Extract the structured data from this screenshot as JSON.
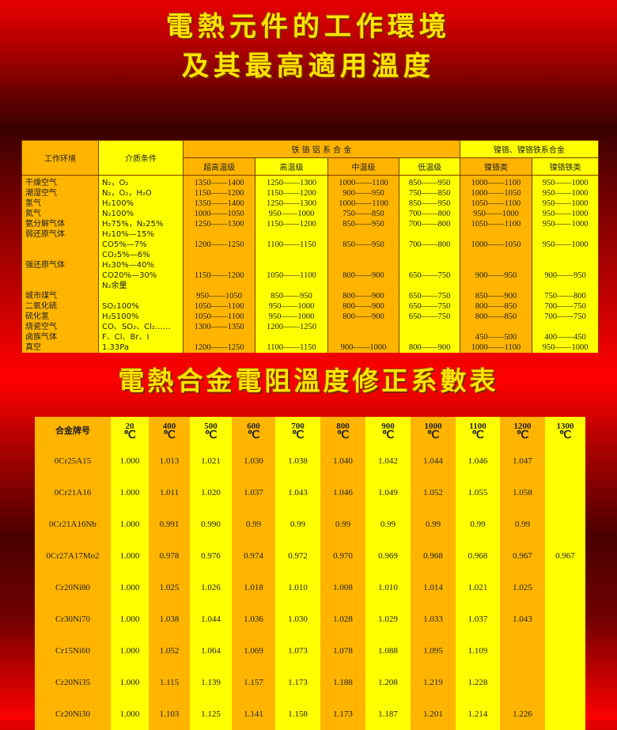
{
  "title1_line1": "電熱元件的工作環境",
  "title1_line2": "及其最高適用溫度",
  "table1": {
    "col_env": "工作环境",
    "col_medium": "介质条件",
    "group_fecral": "铁 铬 铝 系 合 金",
    "group_nicr": "镍铬、镍铬铁系合金",
    "sub": [
      "超高温级",
      "高温级",
      "中温级",
      "低温级",
      "镍铬类",
      "镍铬铁类"
    ],
    "rows": [
      [
        "干燥空气",
        "N₂，O₂",
        "1350——1400",
        "1250——1300",
        "1000——1100",
        "850——950",
        "1000——1100",
        "950——1000"
      ],
      [
        "潮湿空气",
        "N₂，O₂，H₂O",
        "1150——1200",
        "1150——1200",
        "900——950",
        "750——850",
        "1000——1050",
        "950——1000"
      ],
      [
        "氢气",
        "H₂100%",
        "1350——1400",
        "1250——1300",
        "1000——1100",
        "850——950",
        "1050——1100",
        "950——1000"
      ],
      [
        "氮气",
        "N₂100%",
        "1000——1050",
        "950——1000",
        "750——850",
        "700——800",
        "950——1000",
        "950——1000"
      ],
      [
        "氨分解气体",
        "H₂75%，N₂25%",
        "1250——1300",
        "1150——1200",
        "850——950",
        "700——800",
        "1050——1100",
        "950——1000"
      ],
      [
        "弱还原气体",
        "H₂10%—15%",
        "",
        "",
        "",
        "",
        "",
        ""
      ],
      [
        "",
        "CO5%—7%",
        "1200——1250",
        "1100——1150",
        "850——950",
        "700——800",
        "1000——1050",
        "950——1000"
      ],
      [
        "",
        "CO₂5%—6%",
        "",
        "",
        "",
        "",
        "",
        ""
      ],
      [
        "强还原气体",
        "H₂30%—40%",
        "",
        "",
        "",
        "",
        "",
        ""
      ],
      [
        "",
        "CO20%—30%",
        "1150——1200",
        "1050——1100",
        "800——900",
        "650——750",
        "900——950",
        "900——950"
      ],
      [
        "",
        "N₂余量",
        "",
        "",
        "",
        "",
        "",
        ""
      ],
      [
        "城市煤气",
        "",
        "950——1050",
        "850——950",
        "800——900",
        "650——750",
        "850——900",
        "750——800"
      ],
      [
        "二氧化硫",
        "SO₂100%",
        "1050——1100",
        "950——1000",
        "800——900",
        "650——750",
        "800——850",
        "700——750"
      ],
      [
        "硫化氢",
        "H₂S100%",
        "1050——1100",
        "950——1000",
        "800——900",
        "650——750",
        "800——850",
        "700——750"
      ],
      [
        "烧瓷空气",
        "CO、SO₂、Cl₂……",
        "1300——1350",
        "1200——1250",
        "",
        "",
        "",
        ""
      ],
      [
        "卤族气体",
        "F、Cl、Br、I",
        "",
        "",
        "",
        "",
        "450——500",
        "400——450"
      ],
      [
        "真空",
        "1.33Pa",
        "1200——1250",
        "1100——1150",
        "900——1000",
        "800——900",
        "1000——1100",
        "950——1000"
      ]
    ]
  },
  "title2": "電熱合金電阻溫度修正系數表",
  "table2": {
    "col_alloy": "合金牌号",
    "unit": "℃",
    "temps": [
      "20",
      "400",
      "500",
      "600",
      "700",
      "800",
      "900",
      "1000",
      "1100",
      "1200",
      "1300"
    ],
    "rows": [
      [
        "0Cr25A15",
        "1.000",
        "1.013",
        "1.021",
        "1.030",
        "1.038",
        "1.040",
        "1.042",
        "1.044",
        "1.046",
        "1.047",
        ""
      ],
      [
        "0Cr21A16",
        "1.000",
        "1.011",
        "1.020",
        "1.037",
        "1.043",
        "1.046",
        "1.049",
        "1.052",
        "1.055",
        "1.058",
        ""
      ],
      [
        "0Cr21A16Nb",
        "1.000",
        "0.991",
        "0.990",
        "0.99",
        "0.99",
        "0.99",
        "0.99",
        "0.99",
        "0.99",
        "0.99",
        ""
      ],
      [
        "0Cr27A17Mo2",
        "1.000",
        "0.978",
        "0.976",
        "0.974",
        "0.972",
        "0.970",
        "0.969",
        "0.968",
        "0.968",
        "0.967",
        "0.967"
      ],
      [
        "Cr20Ni80",
        "1.000",
        "1.025",
        "1.026",
        "1.018",
        "1.010",
        "1.008",
        "1.010",
        "1.014",
        "1.021",
        "1.025",
        ""
      ],
      [
        "Cr30Ni70",
        "1.000",
        "1.038",
        "1.044",
        "1.036",
        "1.030",
        "1.028",
        "1.029",
        "1.033",
        "1.037",
        "1.043",
        ""
      ],
      [
        "Cr15Ni60",
        "1.000",
        "1.052",
        "1.064",
        "1.069",
        "1.073",
        "1.078",
        "1.088",
        "1.095",
        "1.109",
        "",
        ""
      ],
      [
        "Cr20Ni35",
        "1.000",
        "1.115",
        "1.139",
        "1.157",
        "1.173",
        "1.188",
        "1.208",
        "1.219",
        "1.228",
        "",
        ""
      ],
      [
        "Cr20Ni30",
        "1.000",
        "1.103",
        "1.125",
        "1.141",
        "1.158",
        "1.173",
        "1.187",
        "1.201",
        "1.214",
        "1.226",
        ""
      ]
    ]
  },
  "colors": {
    "orange": "#ffb400",
    "yellow": "#ffff00",
    "title": "#ffe400",
    "background": "#e80000"
  }
}
